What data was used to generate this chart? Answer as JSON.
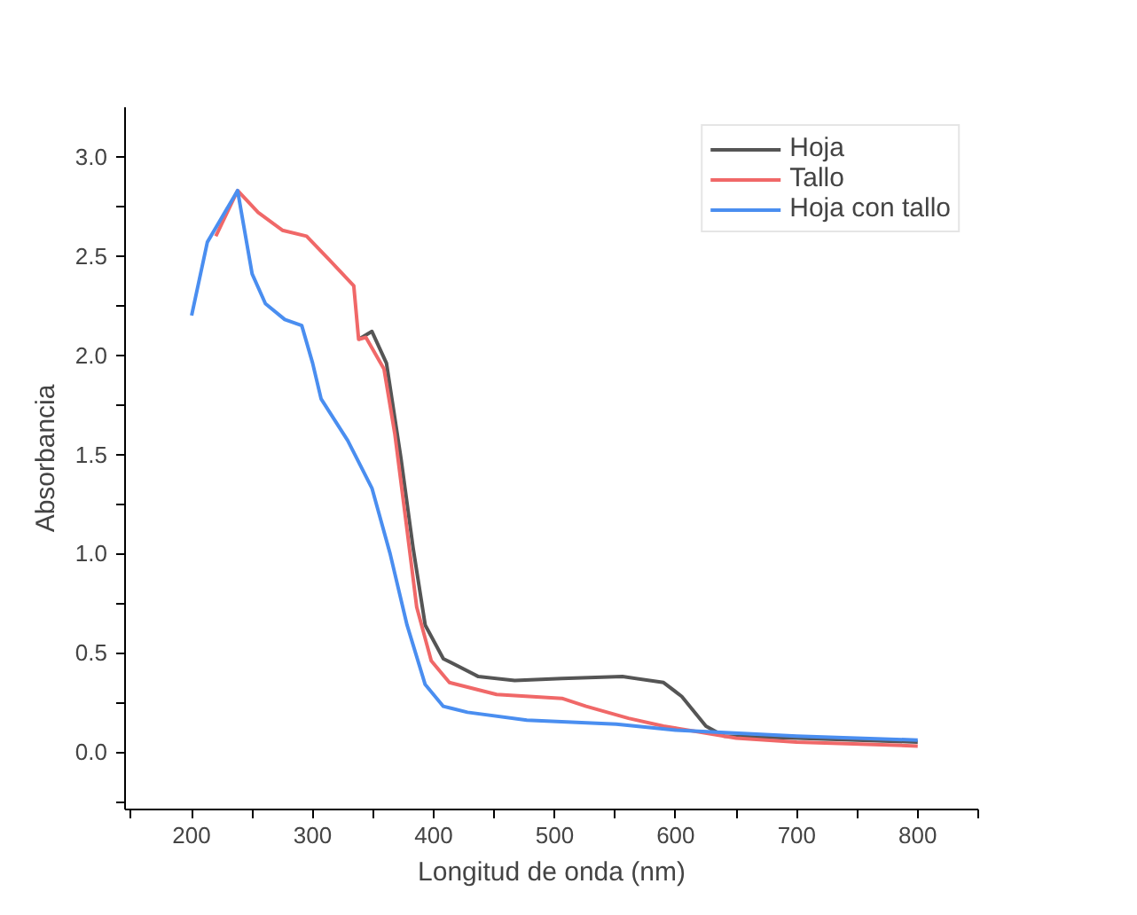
{
  "chart_data": {
    "type": "line",
    "xlabel": "Longitud de onda (nm)",
    "ylabel": "Absorbancia",
    "xlim": [
      145,
      850
    ],
    "ylim": [
      -0.29,
      3.25
    ],
    "xticks": [
      {
        "value": 150,
        "label": null
      },
      200,
      {
        "value": 250,
        "label": null
      },
      300,
      {
        "value": 350,
        "label": null
      },
      400,
      {
        "value": 450,
        "label": null
      },
      500,
      {
        "value": 550,
        "label": null
      },
      600,
      {
        "value": 650,
        "label": null
      },
      700,
      {
        "value": 750,
        "label": null
      },
      800,
      {
        "value": 850,
        "label": null
      }
    ],
    "yticks": [
      {
        "value": -0.25,
        "label": null
      },
      {
        "value": 0,
        "label": "0.0"
      },
      {
        "value": 0.25,
        "label": null
      },
      0.5,
      {
        "value": 0.75,
        "label": null
      },
      {
        "value": 1,
        "label": "1.0"
      },
      {
        "value": 1.25,
        "label": null
      },
      1.5,
      {
        "value": 1.75,
        "label": null
      },
      {
        "value": 2,
        "label": "2.0"
      },
      {
        "value": 2.25,
        "label": null
      },
      2.5,
      {
        "value": 2.75,
        "label": null
      },
      {
        "value": 3,
        "label": "3.0"
      }
    ],
    "grid": false,
    "legend": "top right",
    "line_style": "solid",
    "marker": "none",
    "series": [
      {
        "name": "Hoja",
        "color": "#555555",
        "x": [
          338,
          349,
          361,
          373,
          383,
          393,
          408,
          437,
          467,
          506,
          556,
          590,
          605,
          625,
          640,
          700,
          800
        ],
        "values": [
          2.08,
          2.12,
          1.96,
          1.48,
          1.03,
          0.64,
          0.47,
          0.38,
          0.36,
          0.37,
          0.38,
          0.35,
          0.28,
          0.13,
          0.08,
          0.07,
          0.05
        ]
      },
      {
        "name": "Tallo",
        "color": "#f06868",
        "x": [
          220,
          238,
          255,
          275,
          295,
          314,
          334,
          338,
          344,
          359,
          368,
          378,
          386,
          398,
          413,
          452,
          506,
          526,
          561,
          590,
          650,
          700,
          800
        ],
        "values": [
          2.6,
          2.83,
          2.72,
          2.63,
          2.6,
          2.48,
          2.35,
          2.08,
          2.09,
          1.93,
          1.6,
          1.12,
          0.73,
          0.46,
          0.35,
          0.29,
          0.27,
          0.23,
          0.17,
          0.13,
          0.07,
          0.05,
          0.03
        ]
      },
      {
        "name": "Hoja con tallo",
        "color": "#4a8ef0",
        "x": [
          200,
          213,
          238,
          250,
          261,
          277,
          291,
          300,
          307,
          329,
          349,
          364,
          378,
          393,
          408,
          428,
          477,
          551,
          600,
          700,
          800
        ],
        "values": [
          2.2,
          2.57,
          2.83,
          2.41,
          2.26,
          2.18,
          2.15,
          1.96,
          1.78,
          1.57,
          1.33,
          1.0,
          0.64,
          0.34,
          0.23,
          0.2,
          0.16,
          0.14,
          0.11,
          0.08,
          0.06
        ]
      }
    ]
  }
}
